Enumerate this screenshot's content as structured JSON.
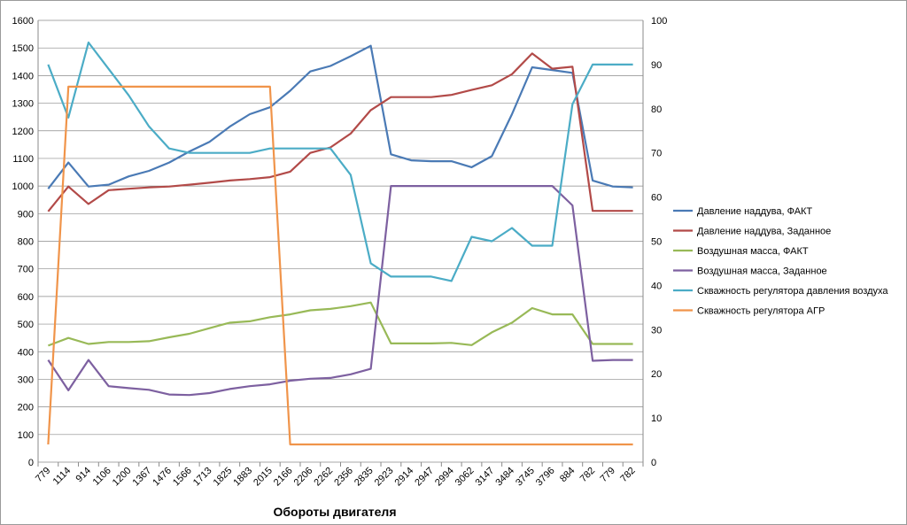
{
  "chart_data": {
    "type": "line",
    "title": "",
    "xlabel": "Обороты двигателя",
    "ylabel": "",
    "y_left_lim": [
      0,
      1600
    ],
    "y_left_ticks": [
      0,
      100,
      200,
      300,
      400,
      500,
      600,
      700,
      800,
      900,
      1000,
      1100,
      1200,
      1300,
      1400,
      1500,
      1600
    ],
    "y_right_lim": [
      0,
      100
    ],
    "y_right_ticks": [
      0,
      10,
      20,
      30,
      40,
      50,
      60,
      70,
      80,
      90,
      100
    ],
    "grid": true,
    "legend_position": "right",
    "categories": [
      "779",
      "1114",
      "914",
      "1106",
      "1200",
      "1367",
      "1476",
      "1566",
      "1713",
      "1825",
      "1883",
      "2015",
      "2166",
      "2206",
      "2262",
      "2356",
      "2835",
      "2923",
      "2914",
      "2947",
      "2994",
      "3062",
      "3147",
      "3484",
      "3745",
      "3796",
      "884",
      "782",
      "779",
      "782"
    ],
    "series": [
      {
        "name": "Давление наддува, ФАКТ",
        "axis": "left",
        "color": "#4a7ab5",
        "values": [
          990,
          1085,
          998,
          1005,
          1035,
          1055,
          1085,
          1125,
          1160,
          1215,
          1260,
          1285,
          1345,
          1415,
          1435,
          1470,
          1508,
          1115,
          1093,
          1090,
          1090,
          1068,
          1108,
          1260,
          1430,
          1420,
          1410,
          1020,
          998,
          995
        ]
      },
      {
        "name": "Давление наддува, Заданное",
        "axis": "left",
        "color": "#b24a48",
        "values": [
          908,
          998,
          935,
          985,
          990,
          995,
          998,
          1005,
          1012,
          1020,
          1025,
          1032,
          1052,
          1120,
          1140,
          1190,
          1275,
          1322,
          1322,
          1322,
          1330,
          1348,
          1365,
          1405,
          1480,
          1425,
          1432,
          910,
          910,
          910
        ]
      },
      {
        "name": "Воздушная масса, ФАКТ",
        "axis": "left",
        "color": "#98b957",
        "values": [
          422,
          450,
          428,
          435,
          435,
          438,
          452,
          465,
          485,
          505,
          510,
          525,
          535,
          550,
          555,
          565,
          578,
          430,
          430,
          430,
          432,
          424,
          470,
          505,
          558,
          535,
          535,
          428,
          428,
          428
        ]
      },
      {
        "name": "Воздушная масса, Заданное",
        "axis": "left",
        "color": "#7d60a0",
        "values": [
          370,
          260,
          370,
          275,
          268,
          262,
          245,
          243,
          250,
          265,
          275,
          282,
          295,
          302,
          305,
          318,
          338,
          1000,
          1000,
          1000,
          1000,
          1000,
          1000,
          1000,
          1000,
          1000,
          930,
          367,
          370,
          370
        ]
      },
      {
        "name": "Скважность регулятора давления воздуха",
        "axis": "right",
        "color": "#4bacc6",
        "values": [
          90,
          78,
          95,
          89,
          83,
          76,
          71,
          70,
          70,
          70,
          70,
          71,
          71,
          71,
          71,
          65,
          45,
          42,
          42,
          42,
          41,
          51,
          50,
          53,
          49,
          49,
          81,
          90,
          90,
          90
        ]
      },
      {
        "name": "Скважность регулятора АГР",
        "axis": "right",
        "color": "#f0944a",
        "values": [
          4,
          85,
          85,
          85,
          85,
          85,
          85,
          85,
          85,
          85,
          85,
          85,
          4,
          4,
          4,
          4,
          4,
          4,
          4,
          4,
          4,
          4,
          4,
          4,
          4,
          4,
          4,
          4,
          4,
          4
        ]
      }
    ]
  }
}
